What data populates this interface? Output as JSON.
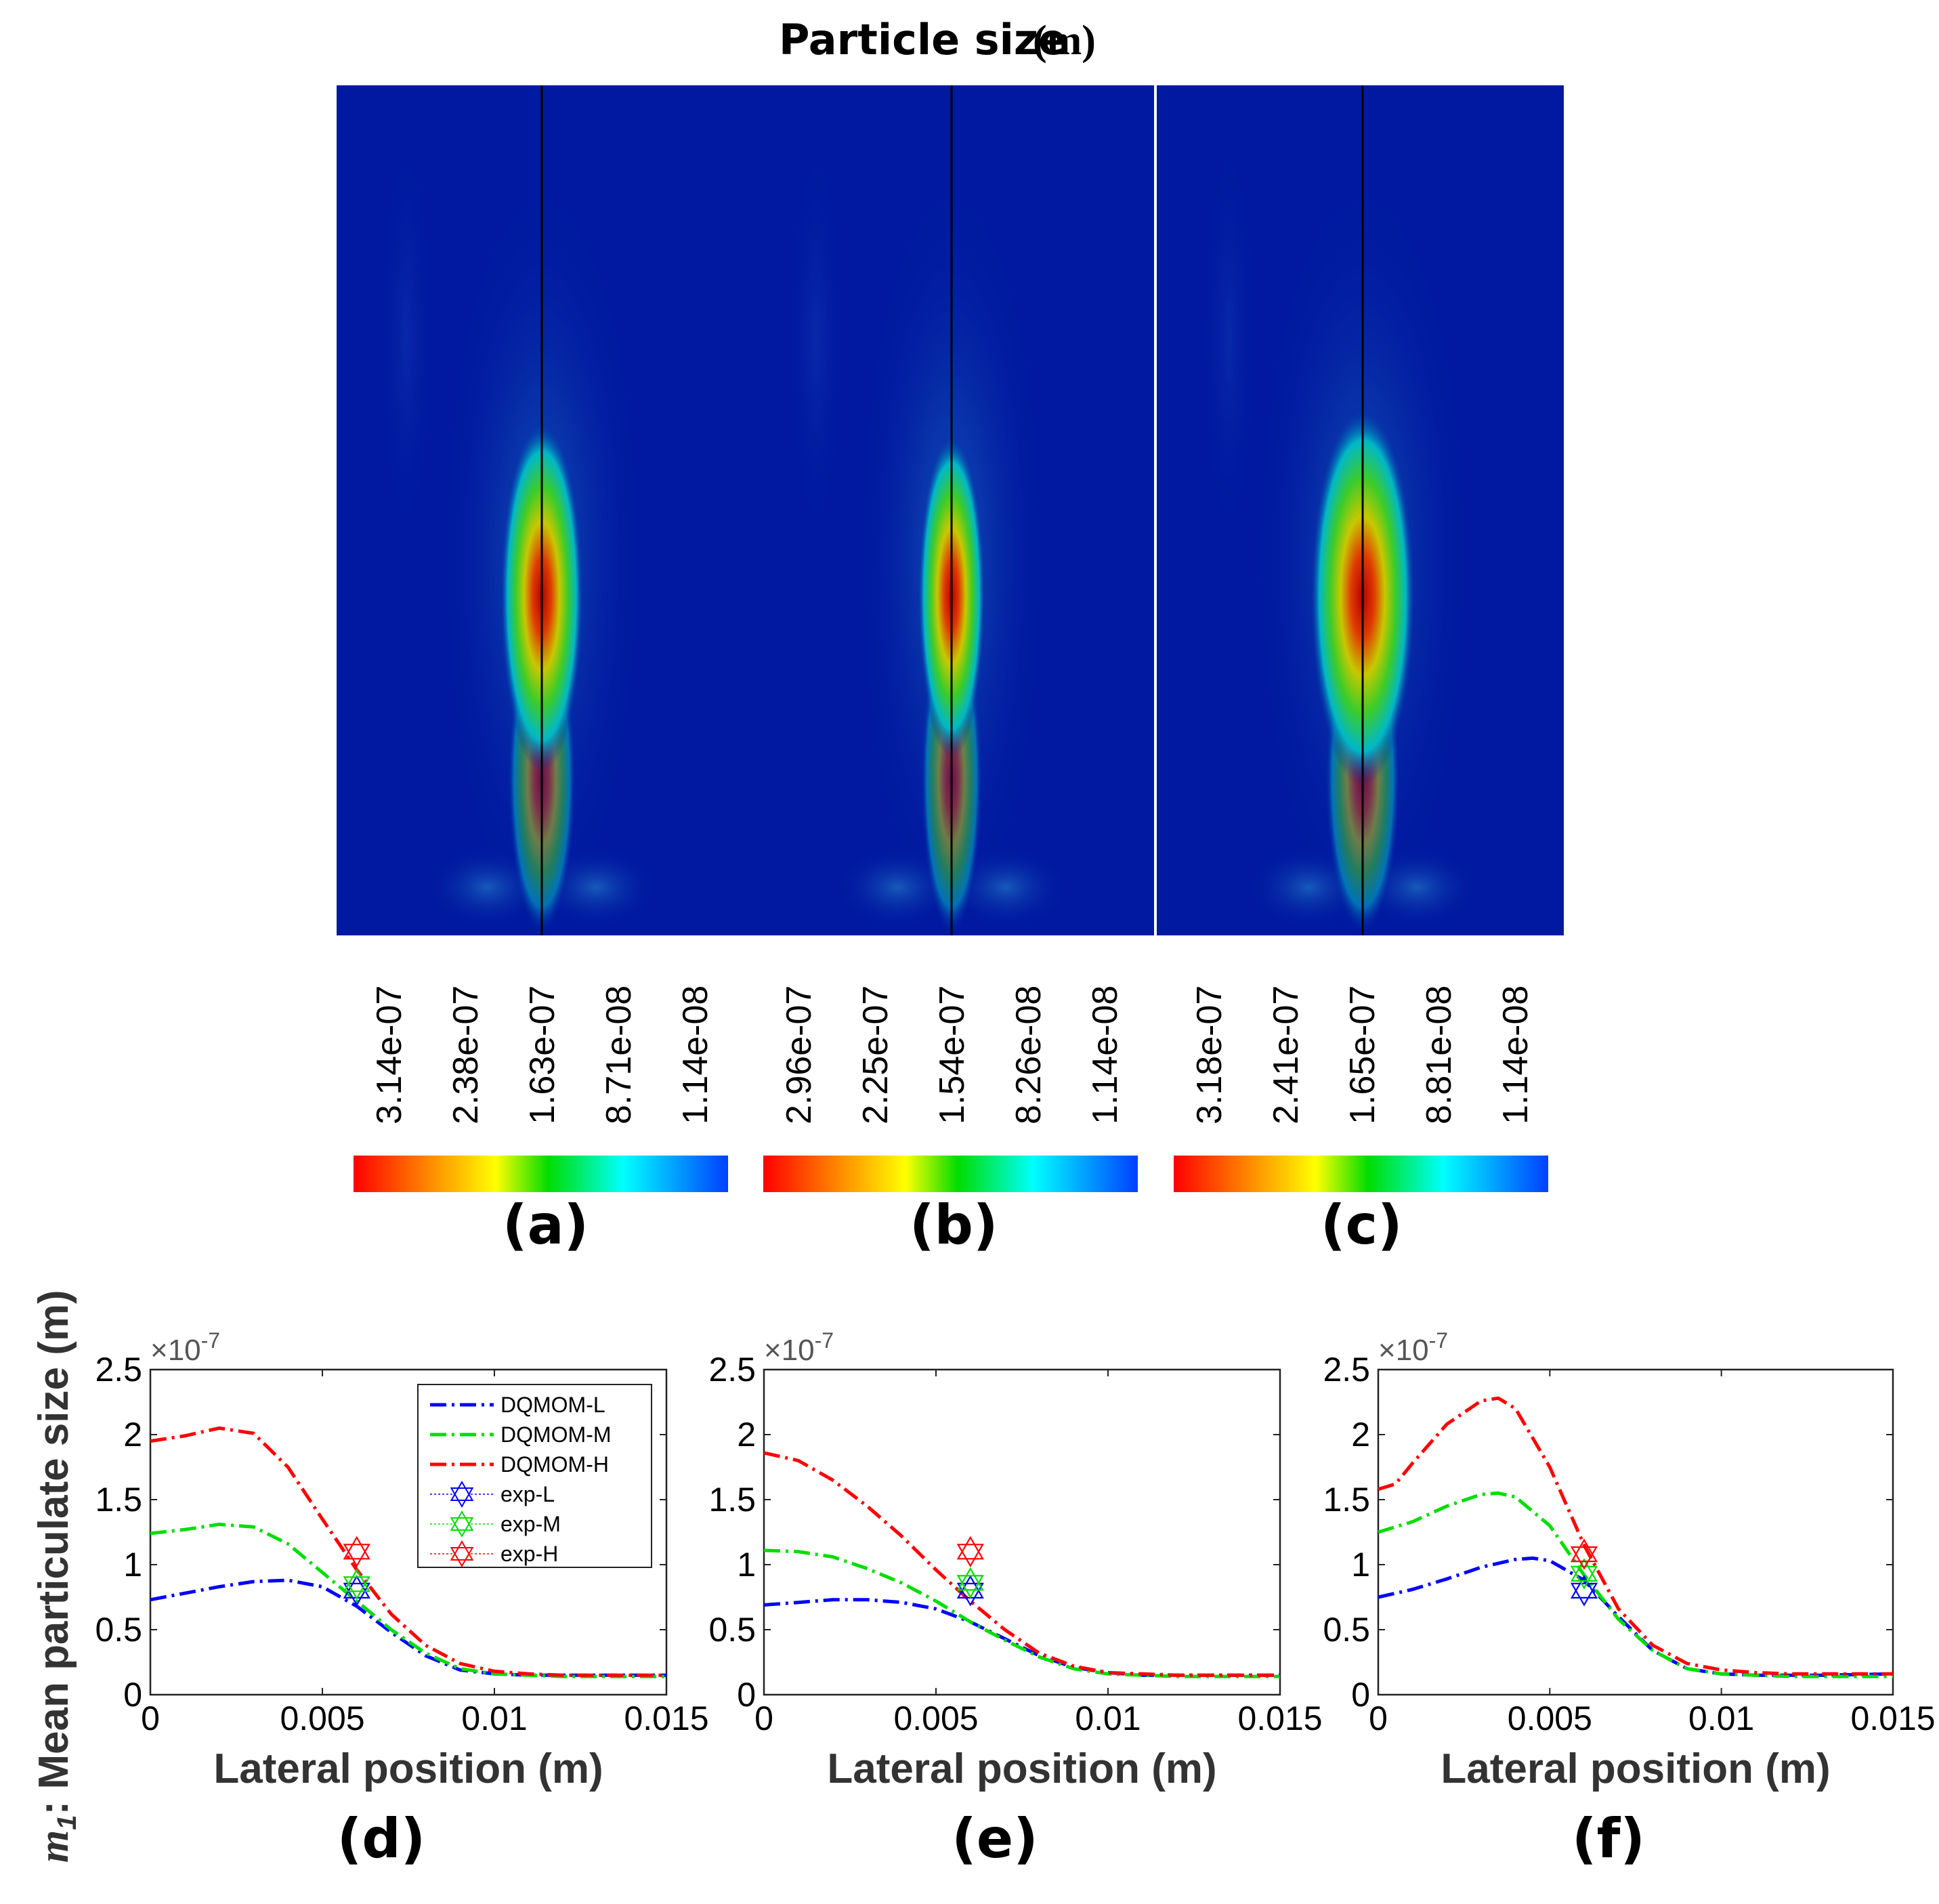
{
  "figure": {
    "title": "Particle size",
    "title_unit": "(m)",
    "y_axis_label_symbol": "m",
    "y_axis_label_subscript": "1",
    "y_axis_label_text": ": Mean particulate size (m)"
  },
  "contours": [
    {
      "panel_label": "(a)",
      "colorbar_ticks": [
        "3.14e-07",
        "2.38e-07",
        "1.63e-07",
        "8.71e-08",
        "1.14e-08"
      ]
    },
    {
      "panel_label": "(b)",
      "colorbar_ticks": [
        "2.96e-07",
        "2.25e-07",
        "1.54e-07",
        "8.26e-08",
        "1.14e-08"
      ]
    },
    {
      "panel_label": "(c)",
      "colorbar_ticks": [
        "3.18e-07",
        "2.41e-07",
        "1.65e-07",
        "8.81e-08",
        "1.14e-08"
      ]
    }
  ],
  "colors": {
    "field_background": "#0019a0",
    "dqmom_l": "#0000ff",
    "dqmom_m": "#00dd00",
    "dqmom_h": "#ff0000",
    "colorbar": [
      "#ff0000",
      "#ff8800",
      "#ffff00",
      "#00dd00",
      "#00ffff",
      "#0040ff"
    ]
  },
  "chart_data": [
    {
      "type": "line",
      "panel_label": "(d)",
      "xlabel": "Lateral position (m)",
      "ylabel": "",
      "xlim": [
        0,
        0.015
      ],
      "ylim": [
        0,
        2.5
      ],
      "x_ticks": [
        "0",
        "0.005",
        "0.01",
        "0.015"
      ],
      "y_ticks": [
        "0",
        "0.5",
        "1",
        "1.5",
        "2",
        "2.5"
      ],
      "y_multiplier": "×10",
      "y_multiplier_exp": "-7",
      "legend": {
        "position": "top-right",
        "entries": [
          "DQMOM-L",
          "DQMOM-M",
          "DQMOM-H",
          "exp-L",
          "exp-M",
          "exp-H"
        ]
      },
      "series": [
        {
          "name": "DQMOM-L",
          "color": "#0000ff",
          "x": [
            0,
            0.001,
            0.002,
            0.003,
            0.004,
            0.005,
            0.006,
            0.007,
            0.008,
            0.009,
            0.01,
            0.011,
            0.012,
            0.013,
            0.015
          ],
          "y": [
            0.73,
            0.78,
            0.83,
            0.87,
            0.88,
            0.83,
            0.68,
            0.48,
            0.3,
            0.19,
            0.16,
            0.15,
            0.15,
            0.15,
            0.15
          ]
        },
        {
          "name": "DQMOM-M",
          "color": "#00dd00",
          "x": [
            0,
            0.001,
            0.002,
            0.003,
            0.004,
            0.005,
            0.006,
            0.007,
            0.008,
            0.009,
            0.01,
            0.011,
            0.012,
            0.013,
            0.015
          ],
          "y": [
            1.24,
            1.27,
            1.31,
            1.29,
            1.16,
            0.94,
            0.72,
            0.5,
            0.32,
            0.2,
            0.16,
            0.15,
            0.14,
            0.14,
            0.14
          ]
        },
        {
          "name": "DQMOM-H",
          "color": "#ff0000",
          "x": [
            0,
            0.001,
            0.002,
            0.003,
            0.004,
            0.005,
            0.006,
            0.007,
            0.008,
            0.009,
            0.01,
            0.011,
            0.012,
            0.013,
            0.015
          ],
          "y": [
            1.95,
            1.99,
            2.05,
            2.01,
            1.75,
            1.35,
            0.96,
            0.62,
            0.38,
            0.24,
            0.18,
            0.16,
            0.15,
            0.15,
            0.15
          ]
        }
      ],
      "points": [
        {
          "name": "exp-L",
          "x": 0.006,
          "y": 0.8,
          "color": "#0000ff"
        },
        {
          "name": "exp-M",
          "x": 0.006,
          "y": 0.85,
          "color": "#00dd00"
        },
        {
          "name": "exp-H",
          "x": 0.006,
          "y": 1.1,
          "color": "#ff0000"
        }
      ]
    },
    {
      "type": "line",
      "panel_label": "(e)",
      "xlabel": "Lateral position (m)",
      "ylabel": "",
      "xlim": [
        0,
        0.015
      ],
      "ylim": [
        0,
        2.5
      ],
      "x_ticks": [
        "0",
        "0.005",
        "0.01",
        "0.015"
      ],
      "y_ticks": [
        "0",
        "0.5",
        "1",
        "1.5",
        "2",
        "2.5"
      ],
      "y_multiplier": "×10",
      "y_multiplier_exp": "-7",
      "series": [
        {
          "name": "DQMOM-L",
          "color": "#0000ff",
          "x": [
            0,
            0.001,
            0.002,
            0.003,
            0.004,
            0.005,
            0.006,
            0.007,
            0.008,
            0.009,
            0.01,
            0.011,
            0.012,
            0.013,
            0.015
          ],
          "y": [
            0.69,
            0.71,
            0.73,
            0.73,
            0.71,
            0.66,
            0.56,
            0.43,
            0.3,
            0.21,
            0.17,
            0.15,
            0.15,
            0.15,
            0.15
          ]
        },
        {
          "name": "DQMOM-M",
          "color": "#00dd00",
          "x": [
            0,
            0.001,
            0.002,
            0.003,
            0.004,
            0.005,
            0.006,
            0.007,
            0.008,
            0.009,
            0.01,
            0.011,
            0.012,
            0.013,
            0.015
          ],
          "y": [
            1.11,
            1.1,
            1.06,
            0.97,
            0.86,
            0.72,
            0.56,
            0.42,
            0.29,
            0.2,
            0.16,
            0.15,
            0.14,
            0.14,
            0.14
          ]
        },
        {
          "name": "DQMOM-H",
          "color": "#ff0000",
          "x": [
            0,
            0.001,
            0.002,
            0.003,
            0.004,
            0.005,
            0.006,
            0.007,
            0.008,
            0.009,
            0.01,
            0.011,
            0.012,
            0.013,
            0.015
          ],
          "y": [
            1.86,
            1.8,
            1.65,
            1.45,
            1.22,
            0.96,
            0.72,
            0.5,
            0.32,
            0.22,
            0.17,
            0.16,
            0.15,
            0.15,
            0.15
          ]
        }
      ],
      "points": [
        {
          "name": "exp-L",
          "x": 0.006,
          "y": 0.8,
          "color": "#0000ff"
        },
        {
          "name": "exp-M",
          "x": 0.006,
          "y": 0.86,
          "color": "#00dd00"
        },
        {
          "name": "exp-H",
          "x": 0.006,
          "y": 1.1,
          "color": "#ff0000"
        }
      ]
    },
    {
      "type": "line",
      "panel_label": "(f)",
      "xlabel": "Lateral position (m)",
      "ylabel": "",
      "xlim": [
        0,
        0.015
      ],
      "ylim": [
        0,
        2.5
      ],
      "x_ticks": [
        "0",
        "0.005",
        "0.01",
        "0.015"
      ],
      "y_ticks": [
        "0",
        "0.5",
        "1",
        "1.5",
        "2",
        "2.5"
      ],
      "y_multiplier": "×10",
      "y_multiplier_exp": "-7",
      "series": [
        {
          "name": "DQMOM-L",
          "color": "#0000ff",
          "x": [
            0,
            0.001,
            0.002,
            0.003,
            0.004,
            0.0045,
            0.005,
            0.006,
            0.007,
            0.008,
            0.009,
            0.01,
            0.011,
            0.012,
            0.013,
            0.015
          ],
          "y": [
            0.75,
            0.81,
            0.89,
            0.98,
            1.04,
            1.05,
            1.03,
            0.88,
            0.6,
            0.34,
            0.2,
            0.16,
            0.15,
            0.15,
            0.15,
            0.16
          ]
        },
        {
          "name": "DQMOM-M",
          "color": "#00dd00",
          "x": [
            0,
            0.001,
            0.002,
            0.003,
            0.0035,
            0.004,
            0.005,
            0.006,
            0.007,
            0.008,
            0.009,
            0.01,
            0.011,
            0.012,
            0.013,
            0.015
          ],
          "y": [
            1.25,
            1.33,
            1.45,
            1.54,
            1.55,
            1.52,
            1.3,
            0.92,
            0.58,
            0.34,
            0.2,
            0.16,
            0.15,
            0.14,
            0.14,
            0.14
          ]
        },
        {
          "name": "DQMOM-H",
          "color": "#ff0000",
          "x": [
            0,
            0.0005,
            0.001,
            0.002,
            0.003,
            0.0035,
            0.004,
            0.005,
            0.006,
            0.007,
            0.008,
            0.009,
            0.01,
            0.011,
            0.012,
            0.013,
            0.015
          ],
          "y": [
            1.58,
            1.62,
            1.78,
            2.08,
            2.26,
            2.28,
            2.2,
            1.75,
            1.15,
            0.66,
            0.38,
            0.24,
            0.19,
            0.17,
            0.16,
            0.16,
            0.16
          ]
        }
      ],
      "points": [
        {
          "name": "exp-L",
          "x": 0.006,
          "y": 0.8,
          "color": "#0000ff"
        },
        {
          "name": "exp-M",
          "x": 0.006,
          "y": 0.93,
          "color": "#00dd00"
        },
        {
          "name": "exp-H",
          "x": 0.006,
          "y": 1.08,
          "color": "#ff0000"
        }
      ]
    }
  ]
}
